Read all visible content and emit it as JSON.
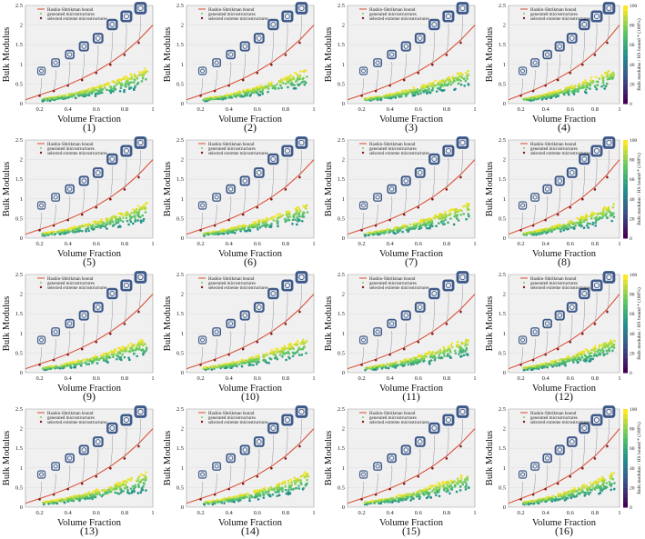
{
  "figure": {
    "x_label": "Volume Fraction",
    "y_label": "Bulk Modulus",
    "legend": [
      "Hashin-Shtrikman bound",
      "generated microstructures",
      "selected extreme microstructures"
    ],
    "colorbar_label": "Bulk modulus / HS bound * (100%)",
    "colorbar_ticks": [
      "0",
      "20",
      "40",
      "60",
      "80",
      "100"
    ],
    "colors": {
      "hs_bound": "#d9472b",
      "selected": "#8b1a1a",
      "micro": "#3e5a8a",
      "plot_bg": "#f0f0f0"
    }
  },
  "panels": [
    {
      "label": "(1)"
    },
    {
      "label": "(2)"
    },
    {
      "label": "(3)"
    },
    {
      "label": "(4)"
    },
    {
      "label": "(5)"
    },
    {
      "label": "(6)"
    },
    {
      "label": "(7)"
    },
    {
      "label": "(8)"
    },
    {
      "label": "(9)"
    },
    {
      "label": "(10)"
    },
    {
      "label": "(11)"
    },
    {
      "label": "(12)"
    },
    {
      "label": "(13)"
    },
    {
      "label": "(14)"
    },
    {
      "label": "(15)"
    },
    {
      "label": "(16)"
    }
  ],
  "chart_data": {
    "type": "scatter",
    "xlabel": "Volume Fraction",
    "ylabel": "Bulk Modulus",
    "xlim": [
      0.1,
      1.0
    ],
    "ylim": [
      0,
      2.5
    ],
    "xticks": [
      0.2,
      0.4,
      0.6,
      0.8,
      1
    ],
    "yticks": [
      0,
      0.5,
      1,
      1.5,
      2,
      2.5
    ],
    "grid": true,
    "legend_position": "top-left",
    "colorscale": "viridis",
    "colorbar_range": [
      0,
      100
    ],
    "series": [
      {
        "name": "Hashin-Shtrikman bound",
        "kind": "line",
        "x": [
          0.1,
          0.2,
          0.3,
          0.4,
          0.5,
          0.6,
          0.7,
          0.8,
          0.9,
          1.0
        ],
        "y": [
          0.1,
          0.22,
          0.34,
          0.48,
          0.64,
          0.82,
          1.04,
          1.3,
          1.62,
          2.0
        ]
      },
      {
        "name": "selected extreme microstructures",
        "kind": "points",
        "x": [
          0.2,
          0.3,
          0.4,
          0.5,
          0.6,
          0.7,
          0.8,
          0.9
        ],
        "y": [
          0.2,
          0.32,
          0.46,
          0.6,
          0.78,
          0.99,
          1.24,
          1.55
        ]
      }
    ]
  }
}
